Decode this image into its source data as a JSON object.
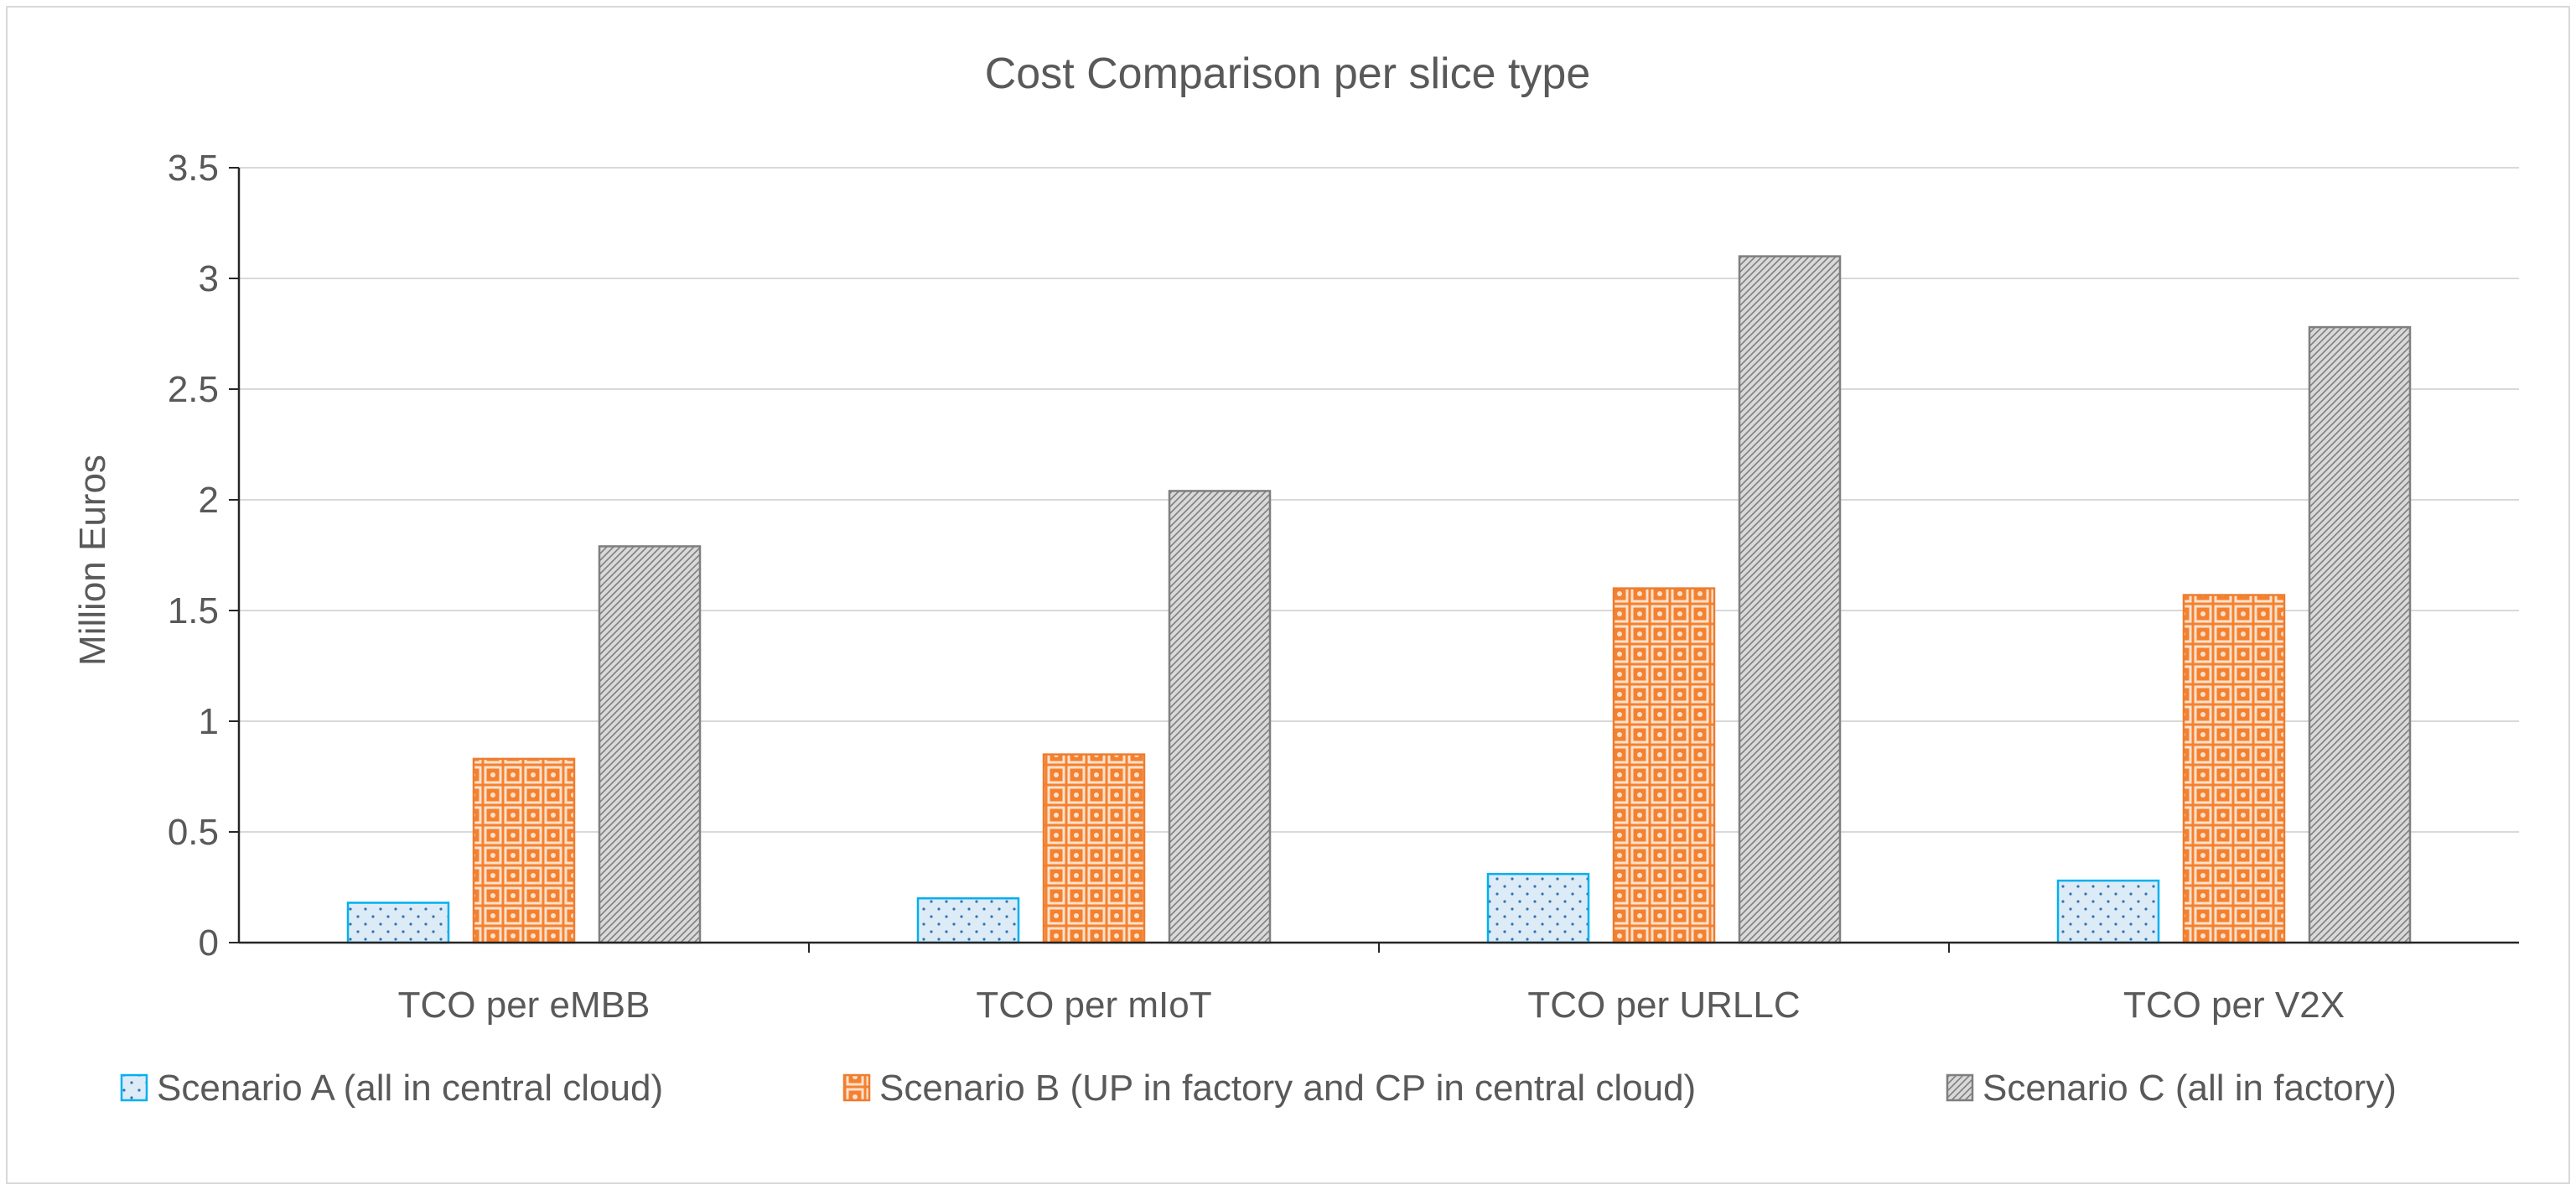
{
  "chart_data": {
    "type": "bar",
    "title": "Cost Comparison per slice type",
    "xlabel": "",
    "ylabel": "Million Euros",
    "ylim": [
      0,
      3.5
    ],
    "yticks": [
      0,
      0.5,
      1,
      1.5,
      2,
      2.5,
      3,
      3.5
    ],
    "ytick_labels": [
      "0",
      "0.5",
      "1",
      "1.5",
      "2",
      "2.5",
      "3",
      "3.5"
    ],
    "grid": true,
    "legend_position": "bottom",
    "categories": [
      "TCO per eMBB",
      "TCO per mIoT",
      "TCO per URLLC",
      "TCO per V2X"
    ],
    "series": [
      {
        "name": "Scenario A (all in central cloud)",
        "values": [
          0.18,
          0.2,
          0.31,
          0.28
        ],
        "fill": "#DDEBF7",
        "stroke": "#00B0F0",
        "pattern": "dots"
      },
      {
        "name": "Scenario B (UP in factory and CP in central cloud)",
        "values": [
          0.83,
          0.85,
          1.6,
          1.57
        ],
        "fill": "#F4812F",
        "stroke": "#ED7D31",
        "pattern": "lattice"
      },
      {
        "name": "Scenario C (all in factory)",
        "values": [
          1.79,
          2.04,
          3.1,
          2.78
        ],
        "fill": "#C9C9C9",
        "stroke": "#7F7F7F",
        "pattern": "diagonal-hatch"
      }
    ]
  }
}
